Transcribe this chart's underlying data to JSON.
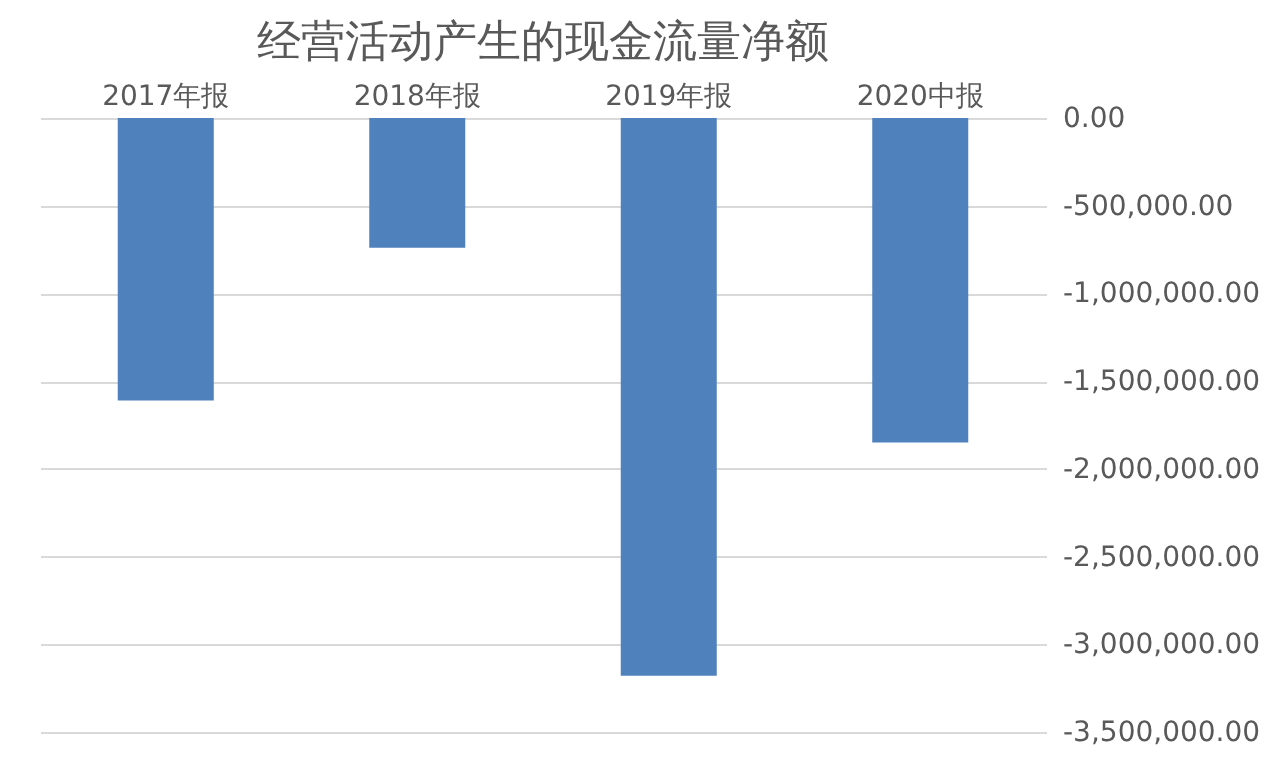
{
  "chart_data": {
    "type": "bar",
    "title": "经营活动产生的现金流量净额",
    "categories": [
      "2017年报",
      "2018年报",
      "2019年报",
      "2020中报"
    ],
    "values": [
      -1610000,
      -740000,
      -3180000,
      -1850000
    ],
    "color": "#4f81bd",
    "ylim": [
      -3500000,
      0
    ],
    "yticks": [
      {
        "value": 0,
        "label": "0.00"
      },
      {
        "value": -500000,
        "label": "-500,000.00"
      },
      {
        "value": -1000000,
        "label": "-1,000,000.00"
      },
      {
        "value": -1500000,
        "label": "-1,500,000.00"
      },
      {
        "value": -2000000,
        "label": "-2,000,000.00"
      },
      {
        "value": -2500000,
        "label": "-2,500,000.00"
      },
      {
        "value": -3000000,
        "label": "-3,000,000.00"
      },
      {
        "value": -3500000,
        "label": "-3,500,000.00"
      }
    ],
    "grid": "y"
  }
}
